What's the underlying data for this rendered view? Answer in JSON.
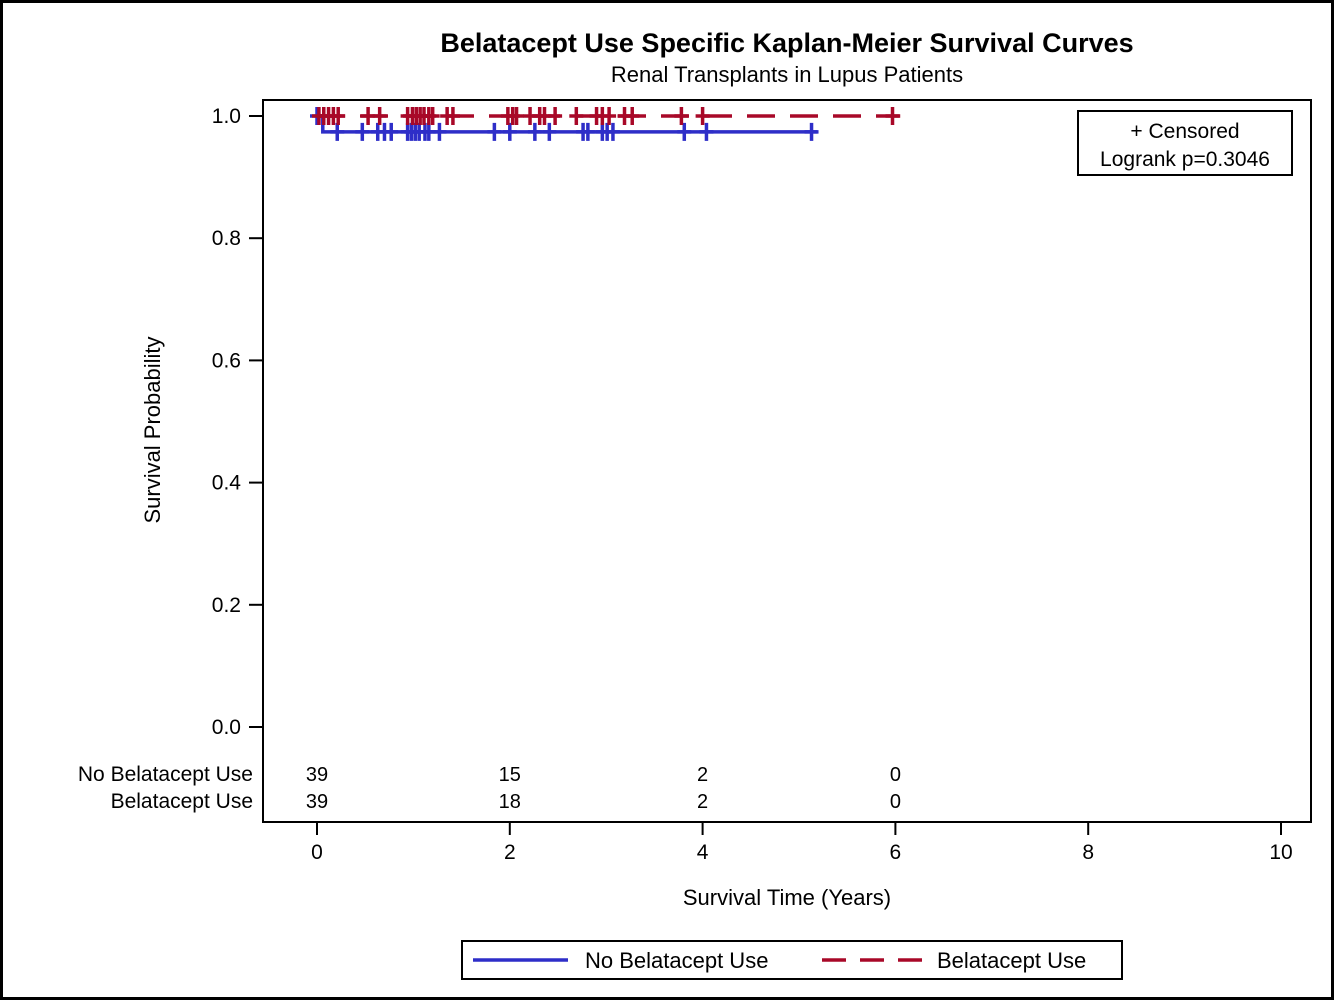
{
  "title": "Belatacept Use Specific Kaplan-Meier Survival Curves",
  "subtitle": "Renal Transplants in Lupus Patients",
  "inset": {
    "censored_label": "+ Censored",
    "logrank_label": "Logrank p=0.3046"
  },
  "colors": {
    "no_belatacept": "#2E2EC8",
    "belatacept": "#A80828",
    "axis": "#000000",
    "background": "#FFFFFF"
  },
  "legend": {
    "items": [
      {
        "label": "No Belatacept Use",
        "style": "solid",
        "color": "#2E2EC8"
      },
      {
        "label": "Belatacept Use",
        "style": "dashed",
        "color": "#A80828"
      }
    ]
  },
  "chart_data": {
    "type": "line",
    "title": "Belatacept Use Specific Kaplan-Meier Survival Curves",
    "subtitle": "Renal Transplants in Lupus Patients",
    "xlabel": "Survival Time (Years)",
    "ylabel": "Survival Probability",
    "xlim": [
      -0.55,
      10.3
    ],
    "ylim": [
      0.0,
      1.0
    ],
    "xticks": {
      "values": [
        0,
        2,
        4,
        6,
        8,
        10
      ],
      "labels": [
        "0",
        "2",
        "4",
        "6",
        "8",
        "10"
      ]
    },
    "yticks": {
      "values": [
        0.0,
        0.2,
        0.4,
        0.6,
        0.8,
        1.0
      ],
      "labels": [
        "0.0",
        "0.2",
        "0.4",
        "0.6",
        "0.8",
        "1.0"
      ]
    },
    "grid": false,
    "logrank_p": 0.3046,
    "series": [
      {
        "name": "No Belatacept Use",
        "color": "#2E2EC8",
        "style": "solid",
        "step_points": [
          [
            0,
            1.0
          ],
          [
            0.06,
            1.0
          ],
          [
            0.06,
            0.974
          ],
          [
            5.19,
            0.974
          ]
        ],
        "censored": [
          [
            0.0,
            1.0
          ],
          [
            0.21,
            0.974
          ],
          [
            0.47,
            0.974
          ],
          [
            0.63,
            0.974
          ],
          [
            0.7,
            0.974
          ],
          [
            0.77,
            0.974
          ],
          [
            0.94,
            0.974
          ],
          [
            0.98,
            0.974
          ],
          [
            1.02,
            0.974
          ],
          [
            1.06,
            0.974
          ],
          [
            1.12,
            0.974
          ],
          [
            1.16,
            0.974
          ],
          [
            1.27,
            0.974
          ],
          [
            1.84,
            0.974
          ],
          [
            2.0,
            0.974
          ],
          [
            2.26,
            0.974
          ],
          [
            2.41,
            0.974
          ],
          [
            2.76,
            0.974
          ],
          [
            2.81,
            0.974
          ],
          [
            2.96,
            0.974
          ],
          [
            3.01,
            0.974
          ],
          [
            3.07,
            0.974
          ],
          [
            3.81,
            0.974
          ],
          [
            4.04,
            0.974
          ],
          [
            5.13,
            0.974
          ]
        ]
      },
      {
        "name": "Belatacept Use",
        "color": "#A80828",
        "style": "dashed",
        "step_points": [
          [
            0,
            1.0
          ],
          [
            6.05,
            1.0
          ]
        ],
        "censored": [
          [
            0.02,
            1.0
          ],
          [
            0.07,
            1.0
          ],
          [
            0.12,
            1.0
          ],
          [
            0.17,
            1.0
          ],
          [
            0.22,
            1.0
          ],
          [
            0.53,
            1.0
          ],
          [
            0.65,
            1.0
          ],
          [
            0.94,
            1.0
          ],
          [
            0.99,
            1.0
          ],
          [
            1.03,
            1.0
          ],
          [
            1.07,
            1.0
          ],
          [
            1.11,
            1.0
          ],
          [
            1.16,
            1.0
          ],
          [
            1.2,
            1.0
          ],
          [
            1.35,
            1.0
          ],
          [
            1.41,
            1.0
          ],
          [
            1.98,
            1.0
          ],
          [
            2.03,
            1.0
          ],
          [
            2.07,
            1.0
          ],
          [
            2.21,
            1.0
          ],
          [
            2.31,
            1.0
          ],
          [
            2.36,
            1.0
          ],
          [
            2.47,
            1.0
          ],
          [
            2.69,
            1.0
          ],
          [
            2.9,
            1.0
          ],
          [
            2.96,
            1.0
          ],
          [
            3.03,
            1.0
          ],
          [
            3.19,
            1.0
          ],
          [
            3.27,
            1.0
          ],
          [
            3.78,
            1.0
          ],
          [
            4.0,
            1.0
          ],
          [
            5.97,
            1.0
          ]
        ]
      }
    ],
    "at_risk_table": {
      "times": [
        0,
        2,
        4,
        6
      ],
      "rows": [
        {
          "label": "No Belatacept Use",
          "color": "#2E2EC8",
          "counts": [
            "39",
            "15",
            "2",
            "0"
          ]
        },
        {
          "label": "Belatacept Use",
          "color": "#A80828",
          "counts": [
            "39",
            "18",
            "2",
            "0"
          ]
        }
      ]
    }
  }
}
